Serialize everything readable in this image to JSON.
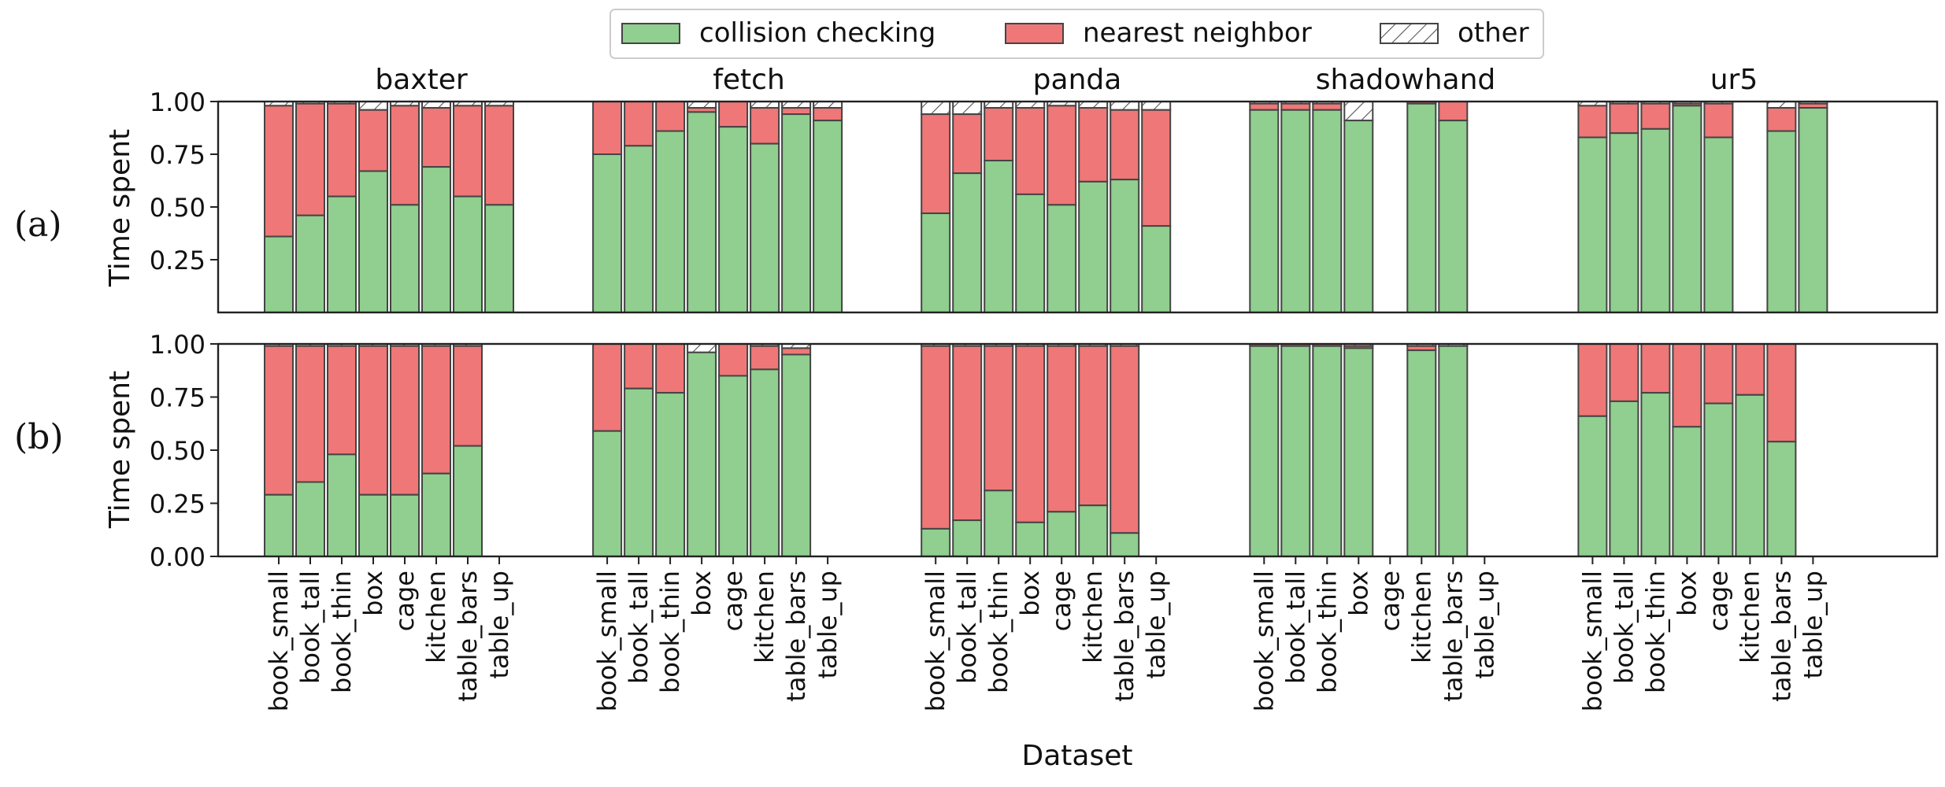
{
  "chart_data": {
    "type": "bar",
    "stacked": true,
    "xlabel": "Dataset",
    "ylabel": "Time spent",
    "ylim": [
      0,
      1
    ],
    "yticks": [
      "1.00",
      "0.75",
      "0.50",
      "0.25",
      "0.00"
    ],
    "legend": {
      "placement": "top-center",
      "entries": [
        {
          "name": "collision checking",
          "color": "#90cf8f",
          "hatch": false
        },
        {
          "name": "nearest neighbor",
          "color": "#ef7777",
          "hatch": false
        },
        {
          "name": "other",
          "color": "#ffffff",
          "hatch": true
        }
      ]
    },
    "groups": [
      "baxter",
      "fetch",
      "panda",
      "shadowhand",
      "ur5"
    ],
    "categories": [
      "book_small",
      "book_tall",
      "book_thin",
      "box",
      "cage",
      "kitchen",
      "table_bars",
      "table_up"
    ],
    "panels": [
      {
        "label": "(a)",
        "yticks": [
          "1.00",
          "0.75",
          "0.50",
          "0.25"
        ],
        "collision": [
          [
            0.36,
            0.46,
            0.55,
            0.67,
            0.51,
            0.69,
            0.55,
            0.51
          ],
          [
            0.75,
            0.79,
            0.86,
            0.95,
            0.88,
            0.8,
            0.94,
            0.91
          ],
          [
            0.47,
            0.66,
            0.72,
            0.56,
            0.51,
            0.62,
            0.63,
            0.41
          ],
          [
            0.96,
            0.96,
            0.96,
            0.91,
            null,
            0.99,
            0.91,
            null
          ],
          [
            0.83,
            0.85,
            0.87,
            0.98,
            0.83,
            null,
            0.86,
            0.97
          ]
        ],
        "nearest": [
          [
            0.62,
            0.53,
            0.44,
            0.29,
            0.47,
            0.28,
            0.43,
            0.47
          ],
          [
            0.25,
            0.21,
            0.14,
            0.02,
            0.12,
            0.17,
            0.03,
            0.06
          ],
          [
            0.47,
            0.28,
            0.25,
            0.41,
            0.47,
            0.35,
            0.33,
            0.55
          ],
          [
            0.03,
            0.03,
            0.03,
            0.0,
            null,
            0.01,
            0.09,
            null
          ],
          [
            0.15,
            0.14,
            0.12,
            0.01,
            0.16,
            null,
            0.11,
            0.02
          ]
        ],
        "other": [
          [
            0.02,
            0.01,
            0.01,
            0.04,
            0.02,
            0.03,
            0.02,
            0.02
          ],
          [
            0.0,
            0.0,
            0.0,
            0.03,
            0.0,
            0.03,
            0.03,
            0.03
          ],
          [
            0.06,
            0.06,
            0.03,
            0.03,
            0.02,
            0.03,
            0.04,
            0.04
          ],
          [
            0.01,
            0.01,
            0.01,
            0.09,
            null,
            0.0,
            0.0,
            null
          ],
          [
            0.02,
            0.01,
            0.01,
            0.01,
            0.01,
            null,
            0.03,
            0.01
          ]
        ]
      },
      {
        "label": "(b)",
        "yticks": [
          "1.00",
          "0.75",
          "0.50",
          "0.25",
          "0.00"
        ],
        "collision": [
          [
            0.29,
            0.35,
            0.48,
            0.29,
            0.29,
            0.39,
            0.52,
            null
          ],
          [
            0.59,
            0.79,
            0.77,
            0.96,
            0.85,
            0.88,
            0.95,
            null
          ],
          [
            0.13,
            0.17,
            0.31,
            0.16,
            0.21,
            0.24,
            0.11,
            null
          ],
          [
            0.99,
            0.99,
            0.99,
            0.98,
            null,
            0.97,
            0.99,
            null
          ],
          [
            0.66,
            0.73,
            0.77,
            0.61,
            0.72,
            0.76,
            0.54,
            null
          ]
        ],
        "nearest": [
          [
            0.7,
            0.64,
            0.51,
            0.7,
            0.7,
            0.6,
            0.47,
            null
          ],
          [
            0.41,
            0.21,
            0.23,
            0.0,
            0.15,
            0.11,
            0.03,
            null
          ],
          [
            0.86,
            0.82,
            0.68,
            0.83,
            0.78,
            0.75,
            0.88,
            null
          ],
          [
            0.01,
            0.01,
            0.01,
            0.01,
            null,
            0.02,
            0.0,
            null
          ],
          [
            0.34,
            0.27,
            0.23,
            0.39,
            0.28,
            0.24,
            0.46,
            null
          ]
        ],
        "other": [
          [
            0.01,
            0.01,
            0.01,
            0.01,
            0.01,
            0.01,
            0.01,
            null
          ],
          [
            0.0,
            0.0,
            0.0,
            0.04,
            0.0,
            0.01,
            0.02,
            null
          ],
          [
            0.01,
            0.01,
            0.01,
            0.01,
            0.01,
            0.01,
            0.01,
            null
          ],
          [
            0.0,
            0.0,
            0.0,
            0.01,
            null,
            0.01,
            0.01,
            null
          ],
          [
            0.0,
            0.0,
            0.0,
            0.0,
            0.0,
            0.0,
            0.0,
            null
          ]
        ]
      }
    ]
  }
}
